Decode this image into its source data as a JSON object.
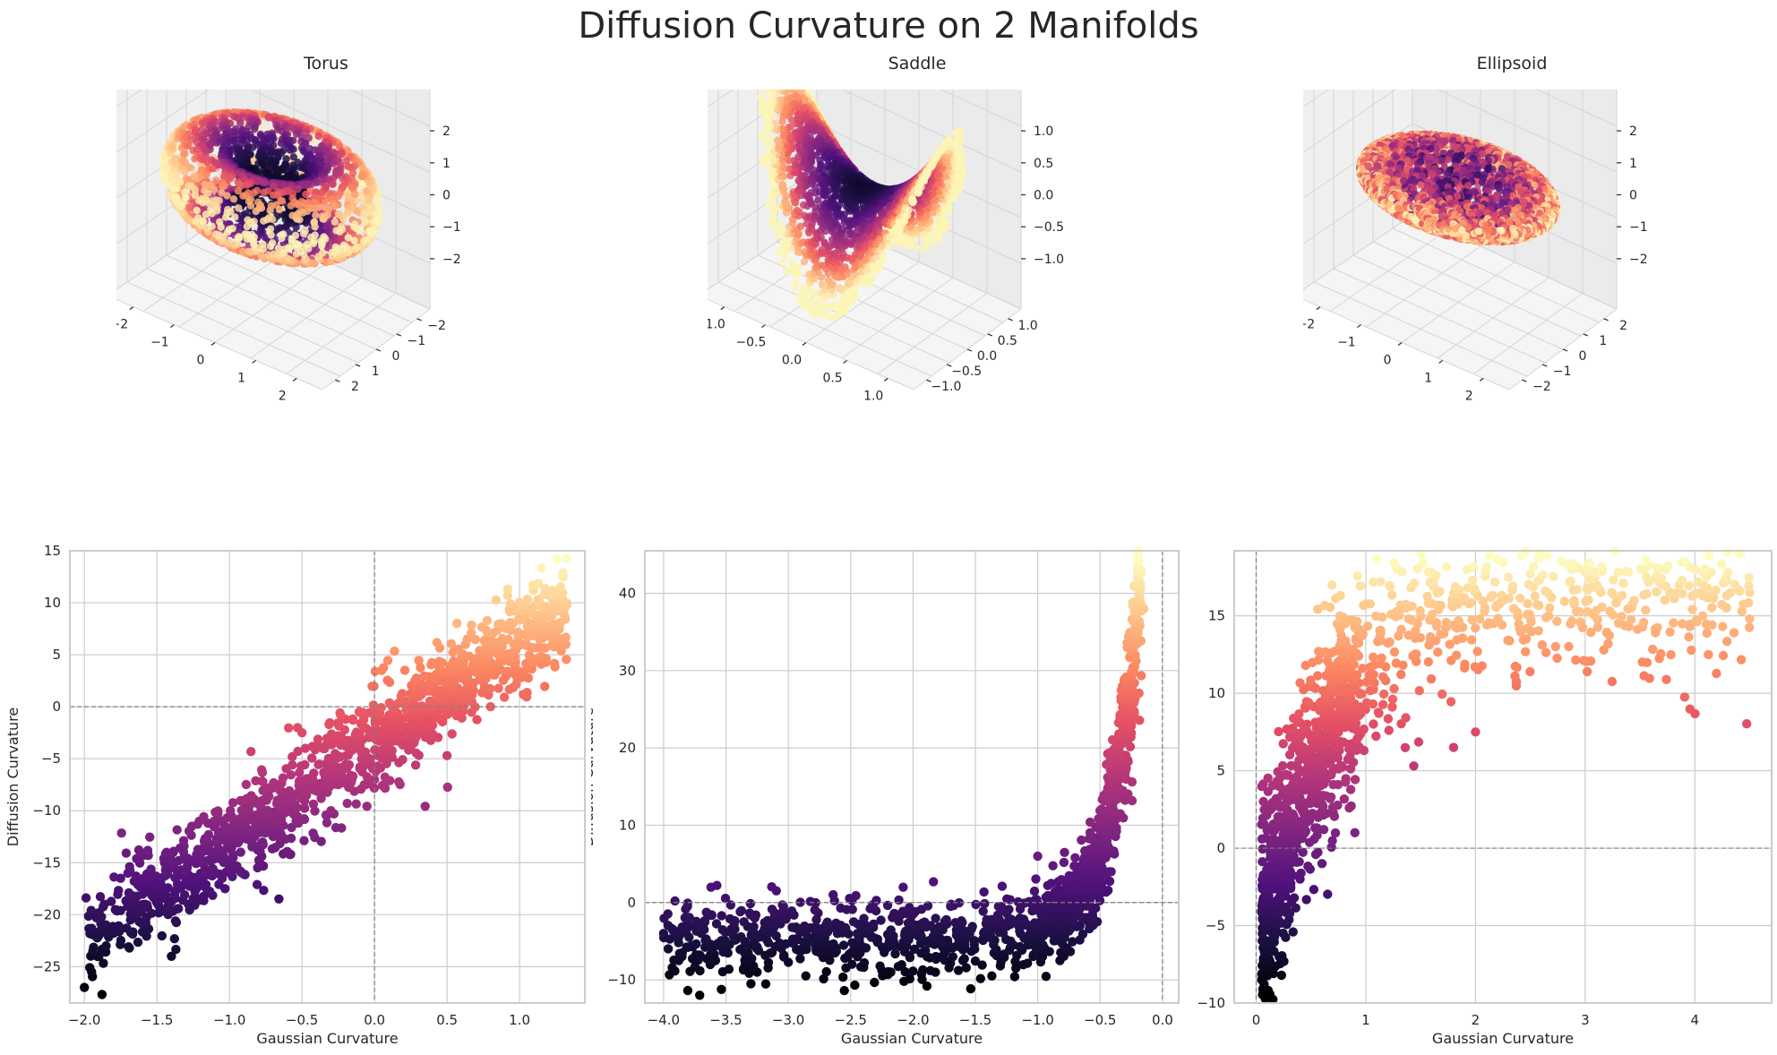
{
  "figure": {
    "title": "Diffusion Curvature on 2 Manifolds"
  },
  "colors": {
    "colormap": "magma",
    "grid": "#cccccc",
    "spine": "#cccccc",
    "reference_line": "#808080",
    "pane": "#f2f2f2"
  },
  "chart_data": [
    {
      "type": "scatter3d",
      "title": "Torus",
      "shape": "torus",
      "xticks": [
        "−2",
        "−1",
        "0",
        "1",
        "2"
      ],
      "yticks": [
        "−2",
        "−1",
        "0",
        "1",
        "2"
      ],
      "zticks": [
        "2",
        "1",
        "0",
        "−1",
        "−2"
      ],
      "xlim": [
        -2.5,
        2.5
      ],
      "ylim": [
        -2.5,
        2.5
      ],
      "zlim": [
        -2.5,
        2.5
      ],
      "color_encoding": "Gaussian Curvature (light = positive, dark = negative)"
    },
    {
      "type": "scatter3d",
      "title": "Saddle",
      "shape": "saddle",
      "xticks": [
        "−1.0",
        "−0.5",
        "0.0",
        "0.5",
        "1.0"
      ],
      "yticks": [
        "1.0",
        "0.5",
        "0.0",
        "−0.5",
        "−1.0"
      ],
      "zticks": [
        "1.0",
        "0.5",
        "0.0",
        "−0.5",
        "−1.0"
      ],
      "xlim": [
        -1.2,
        1.2
      ],
      "ylim": [
        -1.2,
        1.2
      ],
      "zlim": [
        -1.2,
        1.2
      ],
      "color_encoding": "Gaussian Curvature (light = near 0, dark = most negative)"
    },
    {
      "type": "scatter3d",
      "title": "Ellipsoid",
      "shape": "ellipsoid",
      "xticks": [
        "−2",
        "−1",
        "0",
        "1",
        "2"
      ],
      "yticks": [
        "2",
        "1",
        "0",
        "−1",
        "−2"
      ],
      "zticks": [
        "2",
        "1",
        "0",
        "−1",
        "−2"
      ],
      "xlim": [
        -2.5,
        2.5
      ],
      "ylim": [
        -2.5,
        2.5
      ],
      "zlim": [
        -2.5,
        2.5
      ],
      "color_encoding": "Gaussian Curvature (light = high, dark = low)"
    },
    {
      "type": "scatter",
      "title": "",
      "xlabel": "Gaussian Curvature",
      "ylabel": "Diffusion Curvature",
      "xlim": [
        -2.1,
        1.45
      ],
      "ylim": [
        -28.5,
        15
      ],
      "xticks": [
        -2.0,
        -1.5,
        -1.0,
        -0.5,
        0.0,
        0.5,
        1.0
      ],
      "xtick_labels": [
        "−2.0",
        "−1.5",
        "−1.0",
        "−0.5",
        "0.0",
        "0.5",
        "1.0"
      ],
      "yticks": [
        -25,
        -20,
        -15,
        -10,
        -5,
        0,
        5,
        10,
        15
      ],
      "ytick_labels": [
        "−25",
        "−20",
        "−15",
        "−10",
        "−5",
        "0",
        "5",
        "10",
        "15"
      ],
      "reference_lines": {
        "x": 0,
        "y": 0
      },
      "relationship": "linear",
      "trend": {
        "x_start": -2.0,
        "x_end": 1.33,
        "y_start": -22.5,
        "y_end": 9.5,
        "spread": 2.3
      },
      "points": [
        [
          -2.0,
          -27.0
        ],
        [
          -1.95,
          -25.5
        ],
        [
          -1.9,
          -24.0
        ],
        [
          -1.85,
          -23.0
        ],
        [
          -1.75,
          -16.5
        ],
        [
          -1.7,
          -16.0
        ],
        [
          -1.4,
          -24.0
        ],
        [
          -1.2,
          -16.5
        ],
        [
          -1.05,
          -16.5
        ],
        [
          -0.55,
          -10.0
        ],
        [
          -0.3,
          -10.0
        ],
        [
          -0.5,
          -2.5
        ],
        [
          -0.25,
          -2.8
        ],
        [
          0.5,
          -4.7
        ],
        [
          0.05,
          3.5
        ],
        [
          1.3,
          12.5
        ],
        [
          1.32,
          6.0
        ],
        [
          0.8,
          0.0
        ]
      ]
    },
    {
      "type": "scatter",
      "title": "",
      "xlabel": "Gaussian Curvature",
      "ylabel": "Diffusion Curvature",
      "xlim": [
        -4.15,
        0.13
      ],
      "ylim": [
        -13,
        45.5
      ],
      "xticks": [
        -4.0,
        -3.5,
        -3.0,
        -2.5,
        -2.0,
        -1.5,
        -1.0,
        -0.5,
        0.0
      ],
      "xtick_labels": [
        "−4.0",
        "−3.5",
        "−3.0",
        "−2.5",
        "−2.0",
        "−1.5",
        "−1.0",
        "−0.5",
        "0.0"
      ],
      "yticks": [
        -10,
        0,
        10,
        20,
        30,
        40
      ],
      "ytick_labels": [
        "−10",
        "0",
        "10",
        "20",
        "30",
        "40"
      ],
      "reference_lines": {
        "x": 0,
        "y": 0
      },
      "relationship": "exponential",
      "trend": {
        "x_start": -4.0,
        "x_end": -0.17,
        "plateau": -4.5,
        "peak": 42.0,
        "spread": 2.6
      },
      "points": [
        [
          -4.0,
          -4.0
        ],
        [
          -3.3,
          -10.5
        ],
        [
          -3.25,
          -9.0
        ],
        [
          -2.2,
          -9.3
        ],
        [
          -2.25,
          -8.8
        ],
        [
          -1.6,
          -7.5
        ],
        [
          -1.0,
          -6.0
        ],
        [
          -0.2,
          42.0
        ],
        [
          -0.15,
          38.0
        ],
        [
          -0.5,
          10.0
        ],
        [
          -1.0,
          6.0
        ]
      ]
    },
    {
      "type": "scatter",
      "title": "",
      "xlabel": "Gaussian Curvature",
      "ylabel": "Diffusion Curvature",
      "xlim": [
        -0.2,
        4.7
      ],
      "ylim": [
        -10,
        19.2
      ],
      "xticks": [
        0,
        1,
        2,
        3,
        4
      ],
      "xtick_labels": [
        "0",
        "1",
        "2",
        "3",
        "4"
      ],
      "yticks": [
        -10,
        -5,
        0,
        5,
        10,
        15
      ],
      "ytick_labels": [
        "−10",
        "−5",
        "0",
        "5",
        "10",
        "15"
      ],
      "reference_lines": {
        "x": 0,
        "y": 0
      },
      "relationship": "saturating",
      "trend": {
        "x_start": 0.05,
        "x_end": 4.5,
        "low": -7.5,
        "high": 16.5,
        "rate": 1.5,
        "spread": 2.4
      },
      "points": [
        [
          0.05,
          -8.5
        ],
        [
          0.08,
          -7.5
        ],
        [
          0.4,
          -2.0
        ],
        [
          0.6,
          -1.0
        ],
        [
          2.3,
          17.5
        ],
        [
          2.5,
          17.7
        ],
        [
          3.0,
          17.8
        ],
        [
          3.3,
          17.8
        ],
        [
          4.3,
          17.8
        ],
        [
          4.5,
          16.5
        ],
        [
          4.5,
          14.8
        ],
        [
          2.0,
          7.5
        ],
        [
          1.8,
          6.5
        ],
        [
          0.9,
          1.0
        ]
      ]
    }
  ]
}
